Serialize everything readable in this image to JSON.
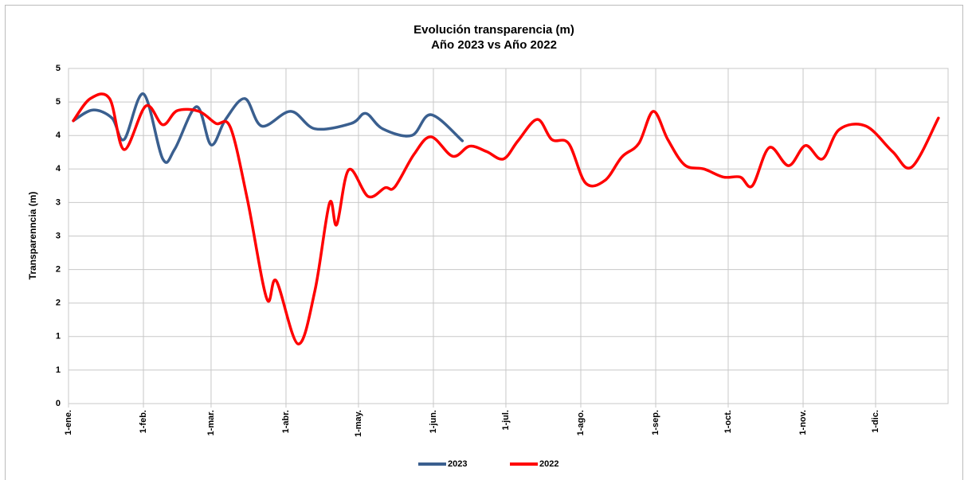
{
  "chart_data": {
    "type": "line",
    "title": "Evolución transparencia (m)",
    "subtitle": "Año 2023 vs Año 2022",
    "ylabel": "Transparenncia (m)",
    "xlim": [
      0,
      364
    ],
    "xticks": [
      {
        "value": 0,
        "label": "1-ene."
      },
      {
        "value": 31,
        "label": "1-feb."
      },
      {
        "value": 59,
        "label": "1-mar."
      },
      {
        "value": 90,
        "label": "1-abr."
      },
      {
        "value": 120,
        "label": "1-may."
      },
      {
        "value": 151,
        "label": "1-jun."
      },
      {
        "value": 181,
        "label": "1-jul."
      },
      {
        "value": 212,
        "label": "1-ago."
      },
      {
        "value": 243,
        "label": "1-sep."
      },
      {
        "value": 273,
        "label": "1-oct."
      },
      {
        "value": 304,
        "label": "1-nov."
      },
      {
        "value": 334,
        "label": "1-dic."
      }
    ],
    "ylim": [
      0,
      5
    ],
    "yticks": [
      0,
      {
        "value": 0.5,
        "label": "1"
      },
      1,
      {
        "value": 1.5,
        "label": "2"
      },
      2,
      {
        "value": 2.5,
        "label": "3"
      },
      3,
      {
        "value": 3.5,
        "label": "4"
      },
      4,
      {
        "value": 4.5,
        "label": "5"
      },
      5
    ],
    "grid": true,
    "legend": "bottom",
    "series": [
      {
        "name": "2023",
        "color": "#3a5f8f",
        "x": [
          2,
          10,
          18,
          23,
          31,
          39,
          44,
          53,
          59,
          65,
          73,
          80,
          92,
          102,
          117,
          123,
          130,
          142,
          150,
          163
        ],
        "values": [
          4.22,
          4.38,
          4.26,
          3.94,
          4.62,
          3.65,
          3.8,
          4.43,
          3.86,
          4.24,
          4.55,
          4.14,
          4.36,
          4.1,
          4.18,
          4.33,
          4.1,
          4.0,
          4.31,
          3.92
        ]
      },
      {
        "name": "2022",
        "color": "#ff0000",
        "x": [
          2,
          9,
          17,
          23,
          32,
          39,
          45,
          54,
          61,
          67,
          74,
          82,
          86,
          95,
          102,
          108,
          111,
          116,
          124,
          131,
          135,
          143,
          150,
          159,
          166,
          173,
          180,
          186,
          194,
          200,
          207,
          214,
          222,
          229,
          236,
          242,
          248,
          255,
          263,
          271,
          278,
          283,
          290,
          298,
          305,
          312,
          319,
          330,
          341,
          349,
          360
        ],
        "values": [
          4.22,
          4.55,
          4.55,
          3.79,
          4.44,
          4.16,
          4.37,
          4.36,
          4.18,
          4.12,
          3.05,
          1.57,
          1.83,
          0.89,
          1.69,
          2.99,
          2.67,
          3.49,
          3.09,
          3.22,
          3.23,
          3.72,
          3.98,
          3.69,
          3.84,
          3.76,
          3.65,
          3.92,
          4.24,
          3.94,
          3.88,
          3.29,
          3.33,
          3.68,
          3.88,
          4.36,
          3.94,
          3.56,
          3.5,
          3.38,
          3.38,
          3.25,
          3.82,
          3.55,
          3.85,
          3.65,
          4.09,
          4.14,
          3.76,
          3.53,
          4.26
        ]
      }
    ]
  }
}
